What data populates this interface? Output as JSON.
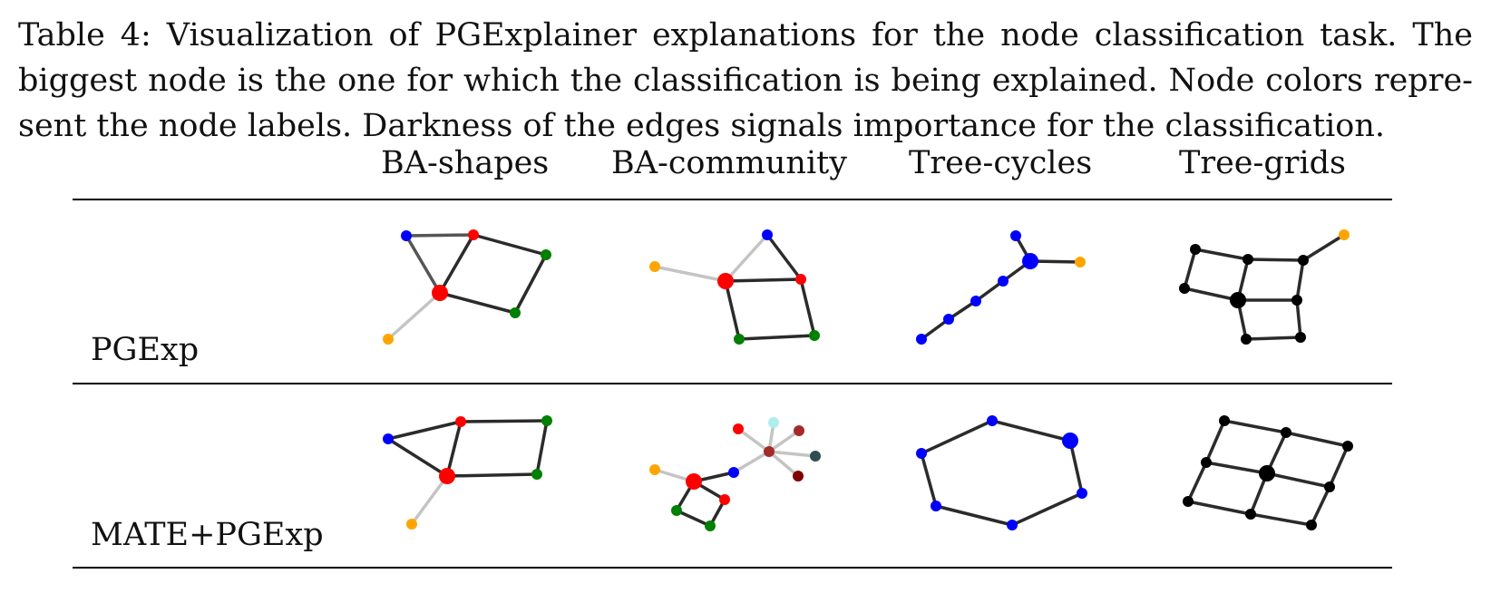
{
  "caption": {
    "line1": "Table 4:  Visualization of PGExplainer explanations for the node classification task.  The",
    "line2": "biggest node is the one for which the classification is being explained.  Node colors repre-",
    "line3": "sent the node labels. Darkness of the edges signals importance for the classification."
  },
  "columns": [
    "BA-shapes",
    "BA-community",
    "Tree-cycles",
    "Tree-grids"
  ],
  "rows": [
    "PGExp",
    "MATE+PGExp"
  ],
  "colors": {
    "blue": "#0000ff",
    "red": "#ff0000",
    "green": "#008000",
    "orange": "#ffa500",
    "black": "#000000",
    "brown": "#a52a2a",
    "darkred": "#800000",
    "lightcyan": "#aeeeee",
    "darkslate": "#2f4f4f",
    "edge_strong": "#2b2b2b",
    "edge_medium": "#555555",
    "edge_weak": "#c4c4c4"
  }
}
